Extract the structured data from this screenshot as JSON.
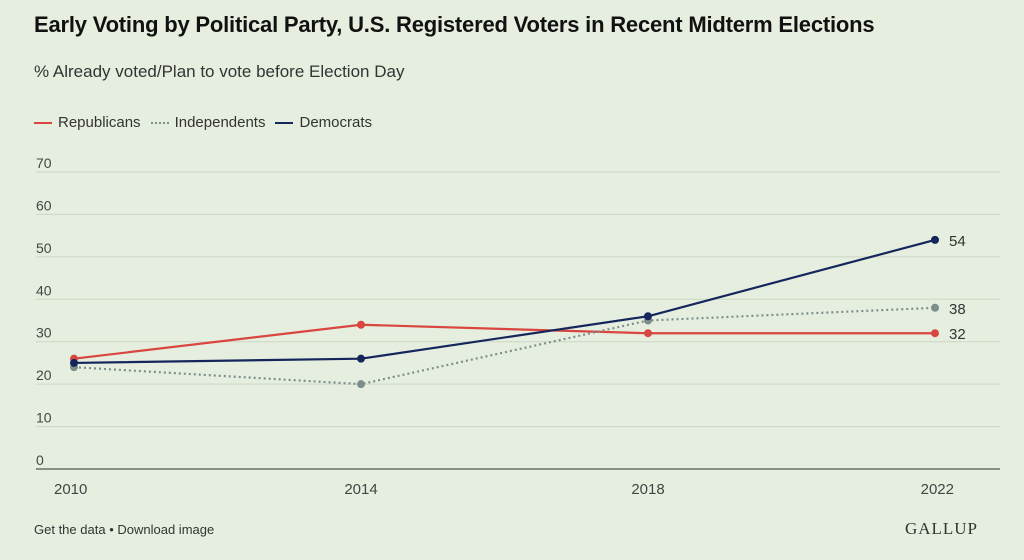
{
  "header": {
    "title": "Early Voting by Political Party, U.S. Registered Voters in Recent Midterm Elections",
    "subtitle": "% Already voted/Plan to vote before Election Day"
  },
  "chart_data": {
    "type": "line",
    "x": [
      "2010",
      "2014",
      "2018",
      "2022"
    ],
    "ylim": [
      0,
      70
    ],
    "yticks": [
      0,
      10,
      20,
      30,
      40,
      50,
      60,
      70
    ],
    "grid": true,
    "legend_position": "top-left",
    "series": [
      {
        "name": "Republicans",
        "values": [
          26,
          34,
          32,
          32
        ],
        "color": "#d9463f",
        "style": "solid",
        "end_label": "32"
      },
      {
        "name": "Independents",
        "values": [
          24,
          20,
          35,
          38
        ],
        "color": "#7c8f8a",
        "style": "dotted",
        "end_label": "38"
      },
      {
        "name": "Democrats",
        "values": [
          25,
          26,
          36,
          54
        ],
        "color": "#14265c",
        "style": "solid",
        "end_label": "54"
      }
    ]
  },
  "footer": {
    "get_data": "Get the data",
    "separator": "•",
    "download": "Download image",
    "brand": "GALLUP"
  }
}
